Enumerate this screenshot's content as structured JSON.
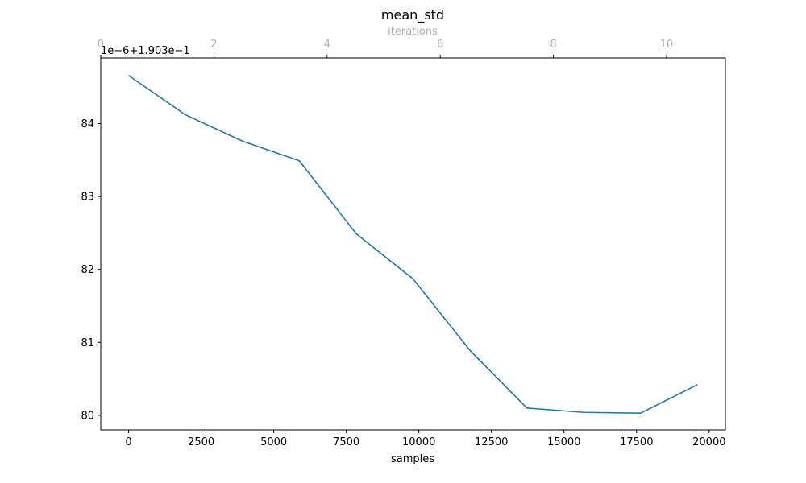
{
  "chart_data": {
    "type": "line",
    "title": "mean_std",
    "xlabel": "samples",
    "ylabel": "",
    "top_xlabel": "iterations",
    "offset_text": "1e−6+1.903e−1",
    "xlim": [
      -960,
      20560
    ],
    "ylim": [
      79.8,
      84.9
    ],
    "x_ticks": [
      0,
      2500,
      5000,
      7500,
      10000,
      12500,
      15000,
      17500,
      20000
    ],
    "x_tick_labels": [
      "0",
      "2500",
      "5000",
      "7500",
      "10000",
      "12500",
      "15000",
      "17500",
      "20000"
    ],
    "y_ticks": [
      80,
      81,
      82,
      83,
      84
    ],
    "y_tick_labels": [
      "80",
      "81",
      "82",
      "83",
      "84"
    ],
    "top_xlim": [
      0,
      11.04
    ],
    "top_ticks": [
      0,
      2,
      4,
      6,
      8,
      10
    ],
    "top_tick_labels": [
      "0",
      "2",
      "4",
      "6",
      "8",
      "10"
    ],
    "grid": false,
    "line_color": "#1f77b4",
    "secondary_axis_color": "#b0b0b0",
    "series": [
      {
        "x": [
          0,
          1960,
          3920,
          5880,
          7840,
          9800,
          11760,
          13720,
          15680,
          17640,
          19600
        ],
        "y": [
          84.66,
          84.12,
          83.76,
          83.49,
          82.49,
          81.87,
          80.89,
          80.1,
          80.04,
          80.03,
          80.42
        ]
      }
    ]
  }
}
